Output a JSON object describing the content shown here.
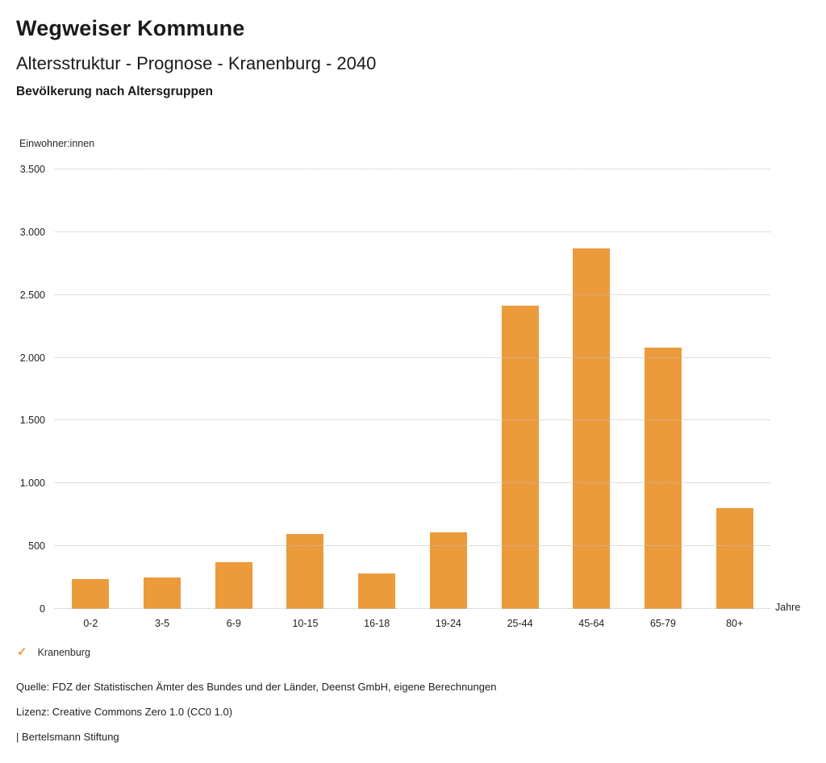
{
  "header": {
    "title": "Wegweiser Kommune",
    "subtitle": "Altersstruktur - Prognose - Kranenburg - 2040",
    "chart_title": "Bevölkerung nach Altersgruppen"
  },
  "chart_data": {
    "type": "bar",
    "title": "Bevölkerung nach Altersgruppen",
    "ylabel": "Einwohner:innen",
    "xlabel": "Jahre",
    "categories": [
      "0-2",
      "3-5",
      "6-9",
      "10-15",
      "16-18",
      "19-24",
      "25-44",
      "45-64",
      "65-79",
      "80+"
    ],
    "series": [
      {
        "name": "Kranenburg",
        "values": [
          235,
          250,
          375,
          595,
          285,
          610,
          2415,
          2870,
          2080,
          800
        ]
      }
    ],
    "ylim": [
      0,
      3500
    ],
    "yticks": [
      0,
      500,
      1000,
      1500,
      2000,
      2500,
      3000,
      3500
    ],
    "ytick_labels": [
      "0",
      "500",
      "1.000",
      "1.500",
      "2.000",
      "2.500",
      "3.000",
      "3.500"
    ],
    "grid": "horizontal-dotted",
    "legend_position": "bottom-left",
    "bar_color": "#EC9B3C"
  },
  "legend": {
    "check_icon": "✓",
    "items": [
      {
        "label": "Kranenburg",
        "checked": true,
        "color": "#EC9B3C"
      }
    ]
  },
  "footer": {
    "source": "Quelle: FDZ der Statistischen Ämter des Bundes und der Länder, Deenst GmbH, eigene Berechnungen",
    "license": "Lizenz: Creative Commons Zero 1.0 (CC0 1.0)",
    "attribution": "| Bertelsmann Stiftung"
  }
}
